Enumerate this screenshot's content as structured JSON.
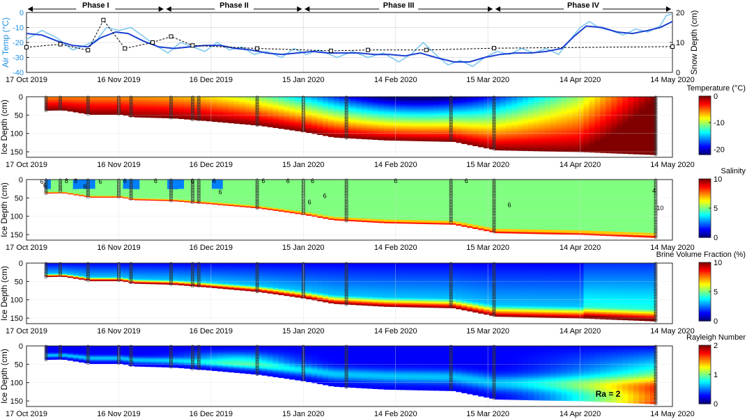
{
  "colors": {
    "air_temp_raw": "#7fc8f0",
    "air_temp_smooth": "#1a3fd1",
    "snow_depth": "#000000",
    "air_axis_label": "#1f8fe0"
  },
  "phases": [
    "Phase I",
    "Phase II",
    "Phase III",
    "Phase IV"
  ],
  "date_ticks": [
    "17 Oct 2019",
    "16 Nov 2019",
    "16 Dec 2019",
    "15 Jan 2020",
    "14 Feb 2020",
    "15 Mar 2020",
    "14 Apr 2020",
    "14 May 2020"
  ],
  "chart_data": [
    {
      "type": "line",
      "x_axis": "date",
      "x_range": [
        "2019-10-17",
        "2020-05-14"
      ],
      "phase_labels": [
        "Phase I",
        "Phase II",
        "Phase III",
        "Phase IV"
      ],
      "phase_boundaries": [
        "2019-10-17",
        "2019-12-01",
        "2020-01-15",
        "2020-03-17",
        "2020-05-14"
      ],
      "ylabel": "Air Temp (°C)",
      "ylim": [
        -40,
        0
      ],
      "yticks": [
        "0",
        "-10",
        "-20",
        "-30",
        "-40"
      ],
      "y2label": "Snow Depth (cm)",
      "y2lim": [
        0,
        20
      ],
      "y2ticks": [
        "0",
        "10",
        "20"
      ],
      "series": [
        {
          "axis": "left",
          "style": "raw",
          "points": [
            [
              "2019-10-17",
              -18
            ],
            [
              "2019-10-22",
              -12
            ],
            [
              "2019-10-27",
              -17
            ],
            [
              "2019-11-01",
              -25
            ],
            [
              "2019-11-05",
              -22
            ],
            [
              "2019-11-09",
              -18
            ],
            [
              "2019-11-12",
              -10
            ],
            [
              "2019-11-16",
              -12
            ],
            [
              "2019-11-20",
              -10
            ],
            [
              "2019-11-24",
              -16
            ],
            [
              "2019-11-28",
              -22
            ],
            [
              "2019-12-02",
              -27
            ],
            [
              "2019-12-06",
              -20
            ],
            [
              "2019-12-10",
              -23
            ],
            [
              "2019-12-14",
              -26
            ],
            [
              "2019-12-18",
              -20
            ],
            [
              "2019-12-22",
              -25
            ],
            [
              "2019-12-26",
              -23
            ],
            [
              "2019-12-30",
              -28
            ],
            [
              "2020-01-03",
              -26
            ],
            [
              "2020-01-08",
              -30
            ],
            [
              "2020-01-12",
              -24
            ],
            [
              "2020-01-16",
              -28
            ],
            [
              "2020-01-20",
              -25
            ],
            [
              "2020-01-26",
              -30
            ],
            [
              "2020-01-31",
              -26
            ],
            [
              "2020-02-05",
              -30
            ],
            [
              "2020-02-10",
              -27
            ],
            [
              "2020-02-15",
              -33
            ],
            [
              "2020-02-19",
              -28
            ],
            [
              "2020-02-23",
              -20
            ],
            [
              "2020-02-27",
              -28
            ],
            [
              "2020-03-02",
              -35
            ],
            [
              "2020-03-06",
              -32
            ],
            [
              "2020-03-10",
              -36
            ],
            [
              "2020-03-14",
              -30
            ],
            [
              "2020-03-18",
              -26
            ],
            [
              "2020-03-22",
              -28
            ],
            [
              "2020-03-26",
              -24
            ],
            [
              "2020-03-30",
              -27
            ],
            [
              "2020-04-03",
              -24
            ],
            [
              "2020-04-07",
              -28
            ],
            [
              "2020-04-10",
              -20
            ],
            [
              "2020-04-14",
              -10
            ],
            [
              "2020-04-17",
              -6
            ],
            [
              "2020-04-20",
              -10
            ],
            [
              "2020-04-24",
              -12
            ],
            [
              "2020-04-28",
              -15
            ],
            [
              "2020-05-02",
              -11
            ],
            [
              "2020-05-06",
              -13
            ],
            [
              "2020-05-10",
              -9
            ],
            [
              "2020-05-12",
              -2
            ],
            [
              "2020-05-14",
              -1
            ]
          ]
        },
        {
          "axis": "left",
          "style": "smoothed",
          "points": [
            [
              "2019-10-17",
              -14
            ],
            [
              "2019-10-22",
              -15
            ],
            [
              "2019-10-27",
              -19
            ],
            [
              "2019-11-01",
              -22
            ],
            [
              "2019-11-06",
              -23
            ],
            [
              "2019-11-10",
              -17
            ],
            [
              "2019-11-15",
              -13
            ],
            [
              "2019-11-19",
              -14
            ],
            [
              "2019-11-24",
              -19
            ],
            [
              "2019-11-29",
              -23
            ],
            [
              "2019-12-04",
              -24
            ],
            [
              "2019-12-09",
              -23
            ],
            [
              "2019-12-14",
              -22
            ],
            [
              "2019-12-19",
              -22
            ],
            [
              "2019-12-24",
              -24
            ],
            [
              "2019-12-29",
              -25
            ],
            [
              "2020-01-03",
              -27
            ],
            [
              "2020-01-08",
              -28
            ],
            [
              "2020-01-13",
              -27
            ],
            [
              "2020-01-18",
              -26
            ],
            [
              "2020-01-23",
              -27
            ],
            [
              "2020-01-28",
              -27
            ],
            [
              "2020-02-02",
              -27
            ],
            [
              "2020-02-07",
              -28
            ],
            [
              "2020-02-12",
              -28
            ],
            [
              "2020-02-17",
              -29
            ],
            [
              "2020-02-22",
              -27
            ],
            [
              "2020-02-27",
              -30
            ],
            [
              "2020-03-04",
              -33
            ],
            [
              "2020-03-09",
              -33
            ],
            [
              "2020-03-14",
              -30
            ],
            [
              "2020-03-19",
              -28
            ],
            [
              "2020-03-24",
              -27
            ],
            [
              "2020-03-29",
              -27
            ],
            [
              "2020-04-03",
              -26
            ],
            [
              "2020-04-08",
              -24
            ],
            [
              "2020-04-12",
              -16
            ],
            [
              "2020-04-16",
              -9
            ],
            [
              "2020-04-21",
              -10
            ],
            [
              "2020-04-26",
              -13
            ],
            [
              "2020-05-01",
              -14
            ],
            [
              "2020-05-06",
              -12
            ],
            [
              "2020-05-10",
              -10
            ],
            [
              "2020-05-14",
              -6
            ]
          ]
        },
        {
          "axis": "right",
          "style": "snow",
          "points": [
            [
              "2019-10-17",
              8.4
            ],
            [
              "2019-10-28",
              9.4
            ],
            [
              "2019-11-06",
              7.4
            ],
            [
              "2019-11-11",
              17.5
            ],
            [
              "2019-11-18",
              8
            ],
            [
              "2019-11-27",
              10
            ],
            [
              "2019-12-03",
              12
            ],
            [
              "2019-12-10",
              9
            ],
            [
              "2019-12-31",
              8
            ],
            [
              "2020-01-24",
              7.2
            ],
            [
              "2020-02-05",
              7.5
            ],
            [
              "2020-02-24",
              7.5
            ],
            [
              "2020-03-17",
              8.1
            ],
            [
              "2020-05-14",
              8.6
            ]
          ]
        }
      ]
    },
    {
      "type": "heatmap",
      "x_axis": "date",
      "ylabel": "Ice Depth (cm)",
      "ylim": [
        0,
        165
      ],
      "yticks": [
        "0",
        "50",
        "100",
        "150"
      ],
      "colorbar_label": "Temperature (°C)",
      "colorbar_ticks": [
        "0",
        "-10",
        "-20"
      ],
      "colorbar_range": [
        -22,
        0
      ]
    },
    {
      "type": "heatmap",
      "x_axis": "date",
      "ylabel": "Ice Depth (cm)",
      "ylim": [
        0,
        165
      ],
      "yticks": [
        "0",
        "50",
        "100",
        "150"
      ],
      "colorbar_label": "Salinity",
      "colorbar_ticks": [
        "10",
        "5",
        "0"
      ],
      "colorbar_range": [
        0,
        10
      ],
      "contour_labels": [
        "6",
        "8",
        "6",
        "6",
        "6",
        "6",
        "6",
        "6",
        "6",
        "6",
        "6",
        "6",
        "8",
        "6",
        "6",
        "6",
        "6",
        "6",
        "4",
        "6",
        "10"
      ]
    },
    {
      "type": "heatmap",
      "x_axis": "date",
      "ylabel": "Ice Depth (cm)",
      "ylim": [
        0,
        165
      ],
      "yticks": [
        "0",
        "50",
        "100",
        "150"
      ],
      "colorbar_label": "Brine Volume Fraction (%)",
      "colorbar_ticks": [
        "10",
        "5",
        "0"
      ],
      "colorbar_range": [
        0,
        10
      ]
    },
    {
      "type": "heatmap",
      "x_axis": "date",
      "ylabel": "Ice Depth (cm)",
      "ylim": [
        0,
        165
      ],
      "yticks": [
        "0",
        "50",
        "100",
        "150"
      ],
      "colorbar_label": "Rayleigh Number",
      "colorbar_ticks": [
        "2",
        "1",
        "0"
      ],
      "colorbar_range": [
        0,
        2
      ],
      "annotation": "Ra = 2"
    }
  ],
  "ice_thickness": [
    [
      "2019-10-17",
      38
    ],
    [
      "2019-10-28",
      36
    ],
    [
      "2019-11-06",
      48
    ],
    [
      "2019-11-16",
      48
    ],
    [
      "2019-11-20",
      55
    ],
    [
      "2019-12-03",
      58
    ],
    [
      "2019-12-12",
      64
    ],
    [
      "2019-12-31",
      78
    ],
    [
      "2020-01-15",
      96
    ],
    [
      "2020-01-24",
      110
    ],
    [
      "2020-02-10",
      118
    ],
    [
      "2020-03-03",
      122
    ],
    [
      "2020-03-17",
      145
    ],
    [
      "2020-04-14",
      150
    ],
    [
      "2020-05-14",
      160
    ]
  ],
  "sampling_dates": [
    "2019-10-17",
    "2019-10-28",
    "2019-11-06",
    "2019-11-16",
    "2019-11-20",
    "2019-12-03",
    "2019-12-10",
    "2019-12-12",
    "2019-12-31",
    "2020-01-15",
    "2020-01-29",
    "2020-03-03",
    "2020-03-17",
    "2020-05-14"
  ]
}
